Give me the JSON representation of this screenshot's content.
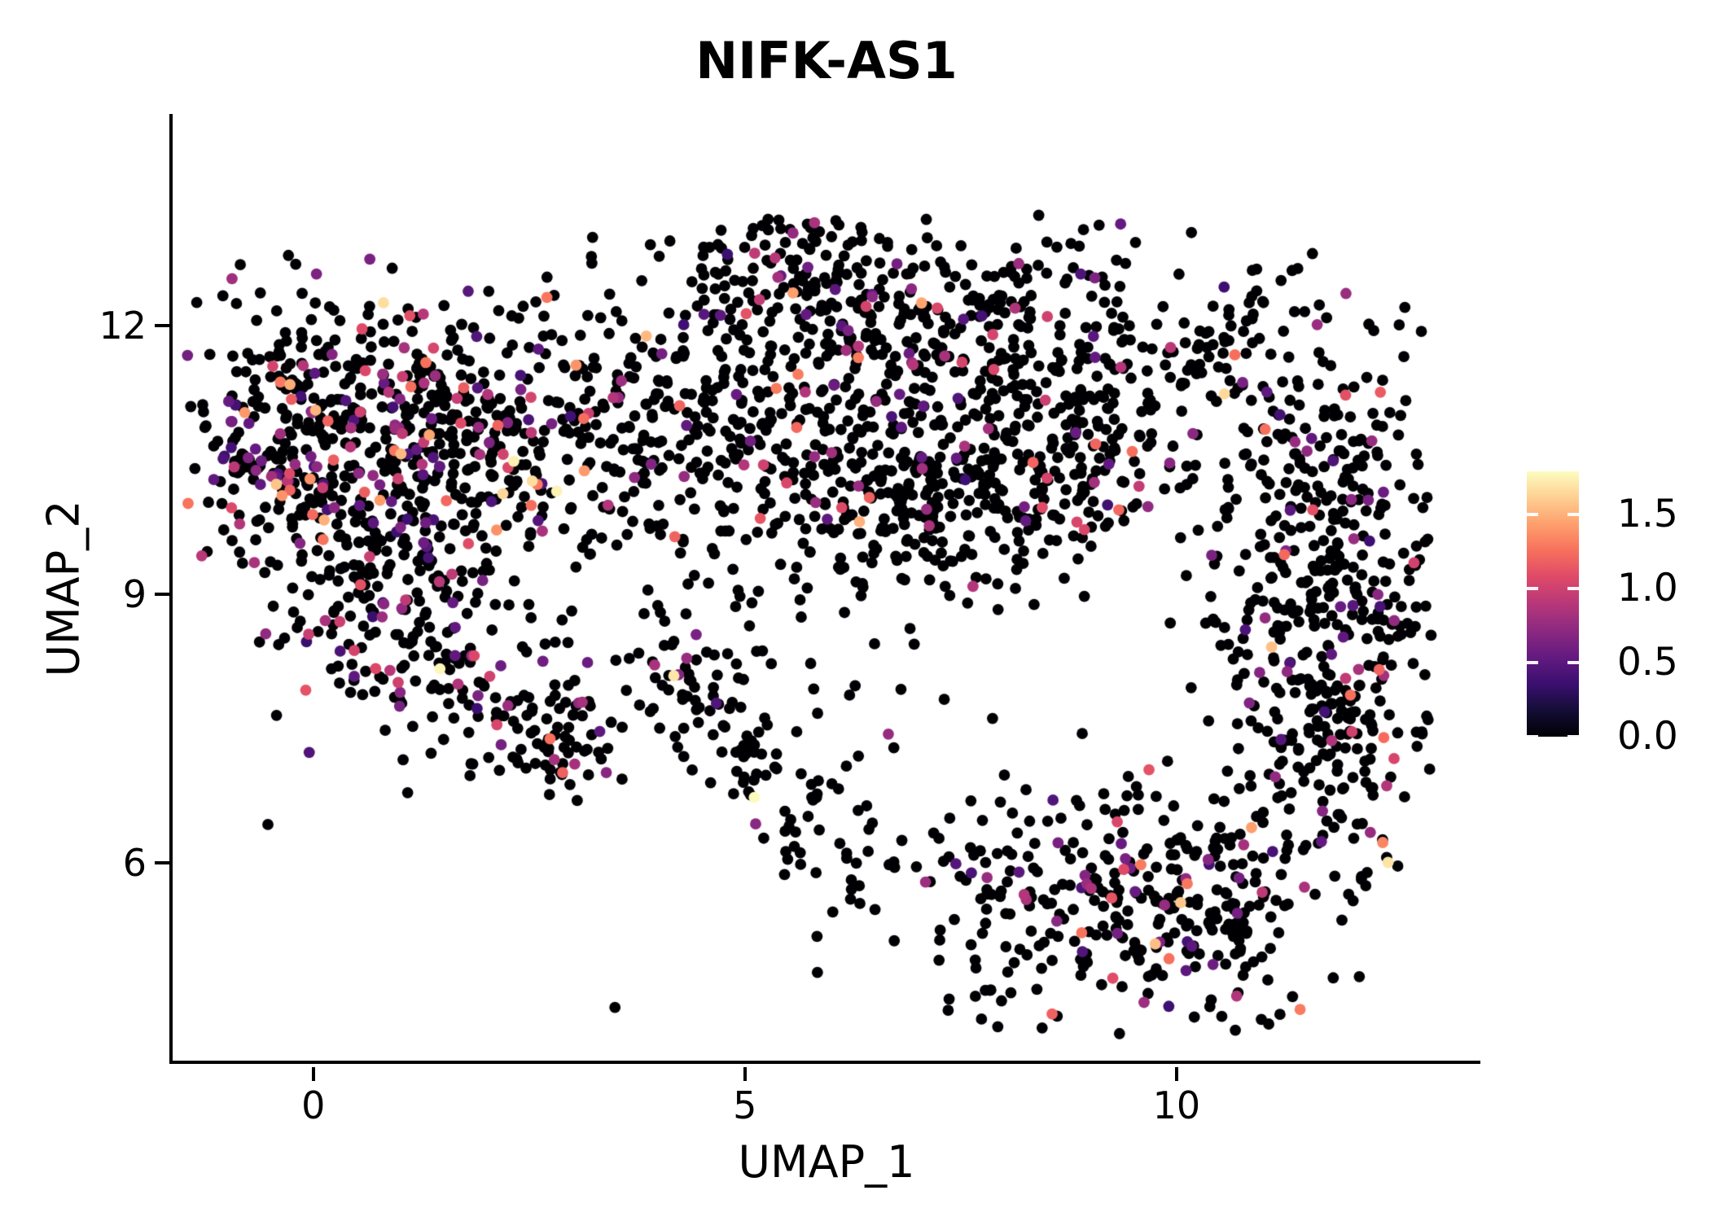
{
  "title": "NIFK-AS1",
  "axes": {
    "x_label": "UMAP_1",
    "y_label": "UMAP_2",
    "x_ticks": [
      {
        "value": 0,
        "label": "0"
      },
      {
        "value": 5,
        "label": "5"
      },
      {
        "value": 10,
        "label": "10"
      }
    ],
    "y_ticks": [
      {
        "value": 12,
        "label": "12"
      },
      {
        "value": 9,
        "label": "9"
      },
      {
        "value": 6,
        "label": "6"
      }
    ]
  },
  "colorbar": {
    "vmin": 0.0,
    "vmax": 1.79,
    "ticks": [
      {
        "value": 1.5,
        "label": "1.5"
      },
      {
        "value": 1.0,
        "label": "1.0"
      },
      {
        "value": 0.5,
        "label": "0.5"
      },
      {
        "value": 0.0,
        "label": "0.0"
      }
    ]
  },
  "colors": {
    "background": "#ffffff",
    "axis": "#000000",
    "text": "#000000",
    "zero_expression_point": "#000004"
  },
  "chart_data": {
    "type": "scatter",
    "title": "NIFK-AS1",
    "xlabel": "UMAP_1",
    "ylabel": "UMAP_2",
    "xlim": [
      -1.63,
      13.52
    ],
    "ylim": [
      3.75,
      14.36
    ],
    "x_ticks": [
      0,
      5,
      10
    ],
    "y_ticks": [
      6,
      9,
      12
    ],
    "grid": false,
    "legend_position": "right-colorbar",
    "point_radius_px": 6.9,
    "color_scale": {
      "name": "magma",
      "vmin": 0.0,
      "vmax": 1.79,
      "stops": [
        {
          "t": 0.0,
          "c": "#000004"
        },
        {
          "t": 0.1,
          "c": "#140E36"
        },
        {
          "t": 0.2,
          "c": "#3B0F70"
        },
        {
          "t": 0.3,
          "c": "#641A80"
        },
        {
          "t": 0.4,
          "c": "#8C2981"
        },
        {
          "t": 0.5,
          "c": "#B73779"
        },
        {
          "t": 0.6,
          "c": "#DE4968"
        },
        {
          "t": 0.7,
          "c": "#F7705C"
        },
        {
          "t": 0.8,
          "c": "#FE9F6D"
        },
        {
          "t": 0.9,
          "c": "#FECF92"
        },
        {
          "t": 1.0,
          "c": "#FCFDBF"
        }
      ]
    },
    "seed": 421,
    "mid_frac_of_positive": 0.26,
    "clip": {
      "x": [
        -1.46,
        12.95
      ],
      "y": [
        4.08,
        13.28
      ]
    },
    "clusters": [
      {
        "name": "left-main",
        "x": 1.1,
        "y": 10.82,
        "sdx": 1.09,
        "sdy": 0.73,
        "n": 480,
        "pos": 0.22,
        "high": 0.1
      },
      {
        "name": "left-west-lobe",
        "x": -0.51,
        "y": 10.91,
        "sdx": 0.52,
        "sdy": 0.77,
        "n": 130,
        "pos": 0.25,
        "high": 0.12
      },
      {
        "name": "left-south",
        "x": 0.91,
        "y": 9.0,
        "sdx": 0.85,
        "sdy": 0.68,
        "n": 170,
        "pos": 0.15,
        "high": 0.06
      },
      {
        "name": "left-taper",
        "x": 1.67,
        "y": 8.27,
        "sdx": 0.62,
        "sdy": 0.55,
        "n": 70,
        "pos": 0.14,
        "high": 0.05
      },
      {
        "name": "lower-left-clump",
        "x": 2.8,
        "y": 7.41,
        "sdx": 0.43,
        "sdy": 0.32,
        "n": 80,
        "pos": 0.1,
        "high": 0.02
      },
      {
        "name": "mid-top",
        "x": 5.74,
        "y": 12.27,
        "sdx": 0.9,
        "sdy": 0.56,
        "n": 230,
        "pos": 0.12,
        "high": 0.04
      },
      {
        "name": "mid-body",
        "x": 5.64,
        "y": 10.68,
        "sdx": 1.42,
        "sdy": 0.77,
        "n": 280,
        "pos": 0.1,
        "high": 0.03
      },
      {
        "name": "mid-dense-pocket",
        "x": 6.69,
        "y": 10.09,
        "sdx": 0.66,
        "sdy": 0.5,
        "n": 120,
        "pos": 0.1,
        "high": 0.02
      },
      {
        "name": "left-mid-bridge",
        "x": 3.75,
        "y": 10.91,
        "sdx": 0.85,
        "sdy": 0.86,
        "n": 120,
        "pos": 0.12,
        "high": 0.05
      },
      {
        "name": "diagonal-arm",
        "line": true,
        "x": 3.94,
        "y": 8.36,
        "x2": 6.5,
        "y2": 5.77,
        "sd": 0.35,
        "n": 120,
        "pos": 0.12,
        "high": 0.05
      },
      {
        "name": "top-right",
        "x": 8.67,
        "y": 11.82,
        "sdx": 0.9,
        "sdy": 0.68,
        "n": 150,
        "pos": 0.06,
        "high": 0.02
      },
      {
        "name": "top-right-chain",
        "line": true,
        "x": 10.0,
        "y": 11.36,
        "x2": 11.14,
        "y2": 12.36,
        "sd": 0.28,
        "n": 50,
        "pos": 0.06,
        "high": 0.02
      },
      {
        "name": "right-main",
        "x": 11.75,
        "y": 9.27,
        "sdx": 0.76,
        "sdy": 1.36,
        "n": 420,
        "pos": 0.1,
        "high": 0.04
      },
      {
        "name": "bottom-right",
        "x": 9.62,
        "y": 5.45,
        "sdx": 1.28,
        "sdy": 0.71,
        "n": 360,
        "pos": 0.13,
        "high": 0.06
      },
      {
        "name": "right-bottom-bridge",
        "x": 11.7,
        "y": 7.09,
        "sdx": 0.52,
        "sdy": 0.64,
        "n": 90,
        "pos": 0.12,
        "high": 0.08
      },
      {
        "name": "mid-right",
        "x": 8.48,
        "y": 10.27,
        "sdx": 0.71,
        "sdy": 0.64,
        "n": 140,
        "pos": 0.1,
        "high": 0.04
      },
      {
        "name": "sparse-broad",
        "x": 4.89,
        "y": 9.27,
        "sdx": 2.46,
        "sdy": 1.45,
        "n": 140,
        "pos": 0.1,
        "high": 0.04
      },
      {
        "name": "sparse-right-gap",
        "x": 9.43,
        "y": 10.91,
        "sdx": 1.04,
        "sdy": 0.82,
        "n": 60,
        "pos": 0.08,
        "high": 0.03
      },
      {
        "name": "top-bridge",
        "x": 7.54,
        "y": 12.0,
        "sdx": 0.66,
        "sdy": 0.55,
        "n": 60,
        "pos": 0.1,
        "high": 0.04
      }
    ]
  }
}
